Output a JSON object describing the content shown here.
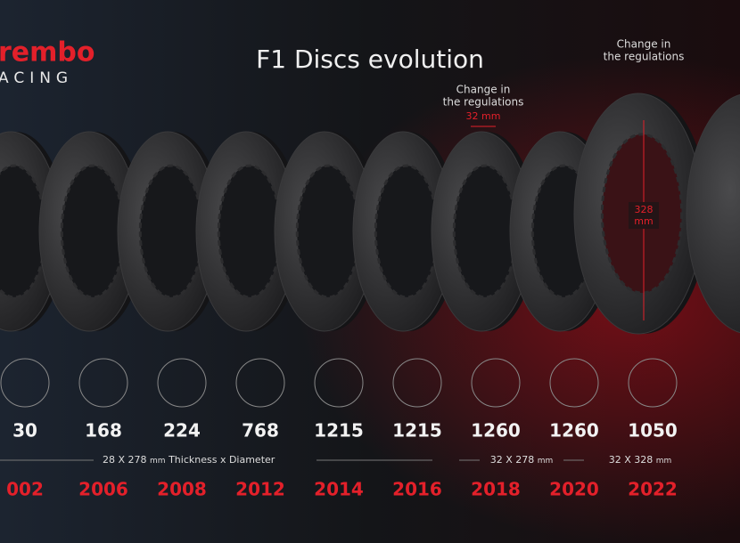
{
  "logo": {
    "line1": "rembo",
    "line2": "ACING"
  },
  "title": "F1 Discs evolution",
  "annotations": [
    {
      "lines": [
        "Change in",
        "the regulations"
      ],
      "measure": "32 mm"
    },
    {
      "lines": [
        "Change in",
        "the regulations"
      ],
      "measure_lines": [
        "328",
        "mm"
      ]
    }
  ],
  "discs": [
    {
      "holes": 30,
      "year": "002"
    },
    {
      "holes": 168,
      "year": "2006"
    },
    {
      "holes": 224,
      "year": "2008"
    },
    {
      "holes": 768,
      "year": "2012"
    },
    {
      "holes": 1215,
      "year": "2014"
    },
    {
      "holes": 1215,
      "year": "2016"
    },
    {
      "holes": 1260,
      "year": "2018"
    },
    {
      "holes": 1260,
      "year": "2020"
    },
    {
      "holes": 1050,
      "year": "2022"
    }
  ],
  "specs": [
    {
      "size": "28 X 278",
      "unit": "mm",
      "note": "Thickness x Diameter"
    },
    {
      "size": "32 X 278",
      "unit": "mm"
    },
    {
      "size": "32 X 328",
      "unit": "mm"
    }
  ]
}
